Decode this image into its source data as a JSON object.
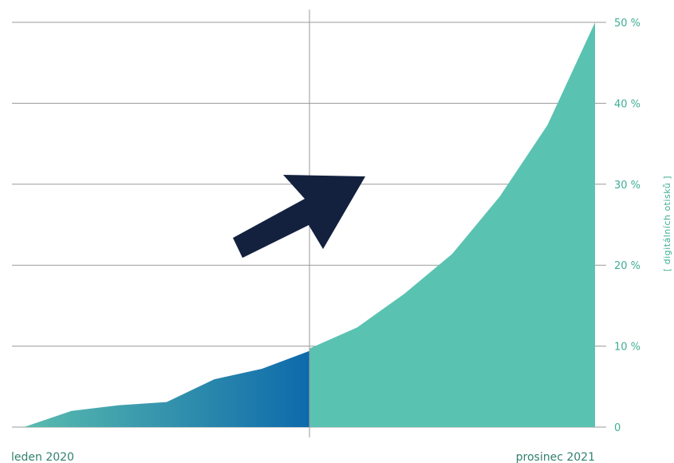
{
  "chart_data": {
    "type": "area",
    "ylabel": "[ digitálních otisků ]",
    "x_start_label": "leden 2020",
    "x_end_label": "prosinec 2021",
    "ylim": [
      0,
      50
    ],
    "yticks": [
      "0",
      "10 %",
      "20 %",
      "30 %",
      "40 %",
      "50 %"
    ],
    "grid": true,
    "series": [
      {
        "x": [
          0,
          2,
          4,
          6,
          8,
          10,
          12
        ],
        "values": [
          0,
          2,
          2.7,
          3.1,
          5.9,
          7.2,
          9.4
        ]
      },
      {
        "x": [
          12,
          14,
          16,
          18,
          20,
          22,
          24
        ],
        "values": [
          9.7,
          12.3,
          16.5,
          21.4,
          28.5,
          37.3,
          50
        ]
      }
    ],
    "colors": {
      "past_start": "#5abcae",
      "past_end": "#0e6aab",
      "future": "#5ac2b1",
      "arrow": "#13213f",
      "grid": "#9a9a9a"
    }
  }
}
